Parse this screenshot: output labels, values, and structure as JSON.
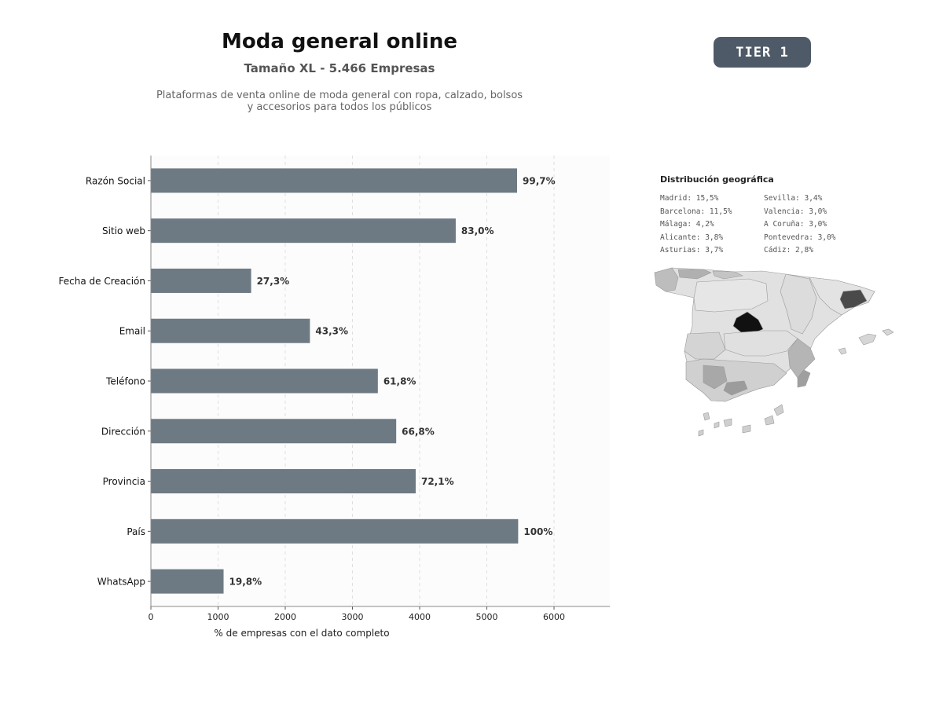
{
  "header": {
    "title": "Moda general online",
    "subtitle": "Tamaño XL - 5.466 Empresas",
    "description_line1": "Plataformas de venta online de moda general con ropa, calzado, bolsos",
    "description_line2": "y accesorios para todos los públicos",
    "tier_badge": "TIER 1"
  },
  "chart_data": {
    "type": "bar",
    "orientation": "horizontal",
    "categories": [
      "Razón Social",
      "Sitio web",
      "Fecha de Creación",
      "Email",
      "Teléfono",
      "Dirección",
      "Provincia",
      "País",
      "WhatsApp"
    ],
    "values": [
      5450,
      4537,
      1492,
      2367,
      3378,
      3651,
      3941,
      5466,
      1082
    ],
    "data_labels": [
      "99,7%",
      "83,0%",
      "27,3%",
      "43,3%",
      "61,8%",
      "66,8%",
      "72,1%",
      "100%",
      "19,8%"
    ],
    "xlabel": "% de empresas con el dato completo",
    "ylabel": "",
    "xlim": [
      0,
      6830
    ],
    "xticks": [
      0,
      1000,
      2000,
      3000,
      4000,
      5000,
      6000
    ],
    "grid": "vertical-dashed",
    "bar_color": "#6e7a83"
  },
  "geo": {
    "title": "Distribución geográfica",
    "entries": [
      "Madrid: 15,5%",
      "Sevilla: 3,4%",
      "Barcelona: 11,5%",
      "Valencia: 3,0%",
      "Málaga: 4,2%",
      "A Coruña: 3,0%",
      "Alicante: 3,8%",
      "Pontevedra: 3,0%",
      "Asturias: 3,7%",
      "Cádiz: 2,8%"
    ]
  }
}
